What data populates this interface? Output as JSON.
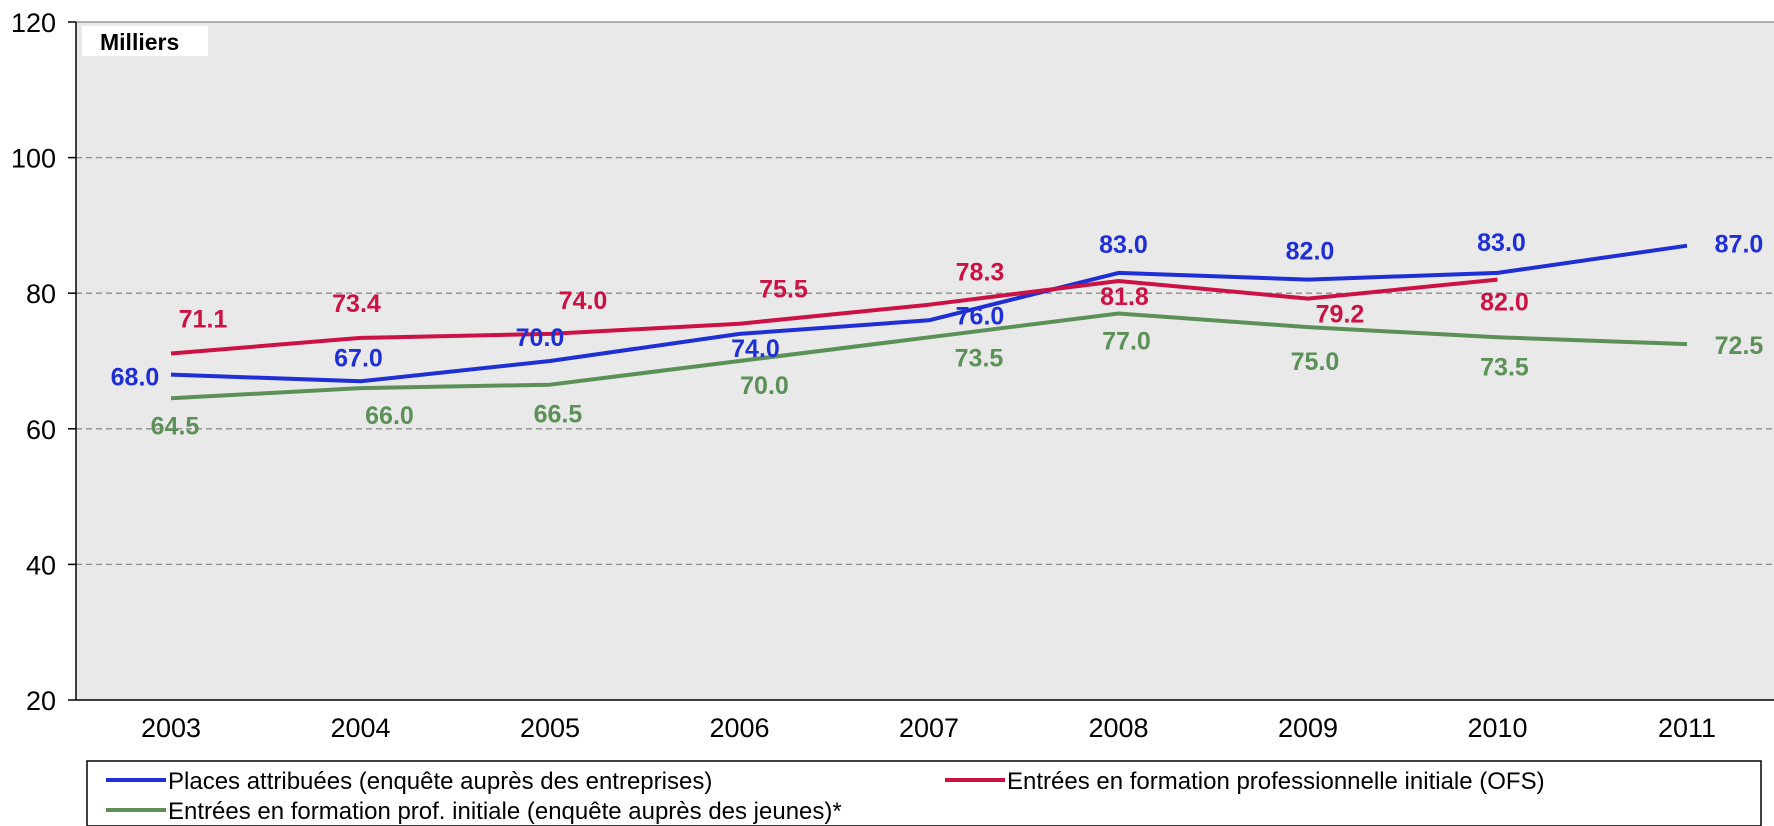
{
  "chart_data": {
    "type": "line",
    "unit_label": "Milliers",
    "categories": [
      "2003",
      "2004",
      "2005",
      "2006",
      "2007",
      "2008",
      "2009",
      "2010",
      "2011"
    ],
    "ylim": [
      20,
      120
    ],
    "yticks": [
      "20",
      "40",
      "60",
      "80",
      "100",
      "120"
    ],
    "grid": true,
    "legend_position": "bottom",
    "series": [
      {
        "name": "Places attribuées (enquête auprès des entreprises)",
        "color": "#1f2fd6",
        "values": [
          68.0,
          67.0,
          70.0,
          74.0,
          76.0,
          83.0,
          82.0,
          83.0,
          87.0
        ],
        "labels": [
          "68.0",
          "67.0",
          "70.0",
          "74.0",
          "76.0",
          "83.0",
          "82.0",
          "83.0",
          "87.0"
        ]
      },
      {
        "name": "Entrées en formation professionnelle initiale (OFS)",
        "color": "#cc1144",
        "values": [
          71.1,
          73.4,
          74.0,
          75.5,
          78.3,
          81.8,
          79.2,
          82.0,
          null
        ],
        "labels": [
          "71.1",
          "73.4",
          "74.0",
          "75.5",
          "78.3",
          "81.8",
          "79.2",
          "82.0",
          null
        ]
      },
      {
        "name": "Entrées en formation prof. initiale (enquête auprès des jeunes)*",
        "color": "#5b9156",
        "values": [
          64.5,
          66.0,
          66.5,
          70.0,
          73.5,
          77.0,
          75.0,
          73.5,
          72.5
        ],
        "labels": [
          "64.5",
          "66.0",
          "66.5",
          "70.0",
          "73.5",
          "77.0",
          "75.0",
          "73.5",
          "72.5"
        ]
      }
    ]
  }
}
